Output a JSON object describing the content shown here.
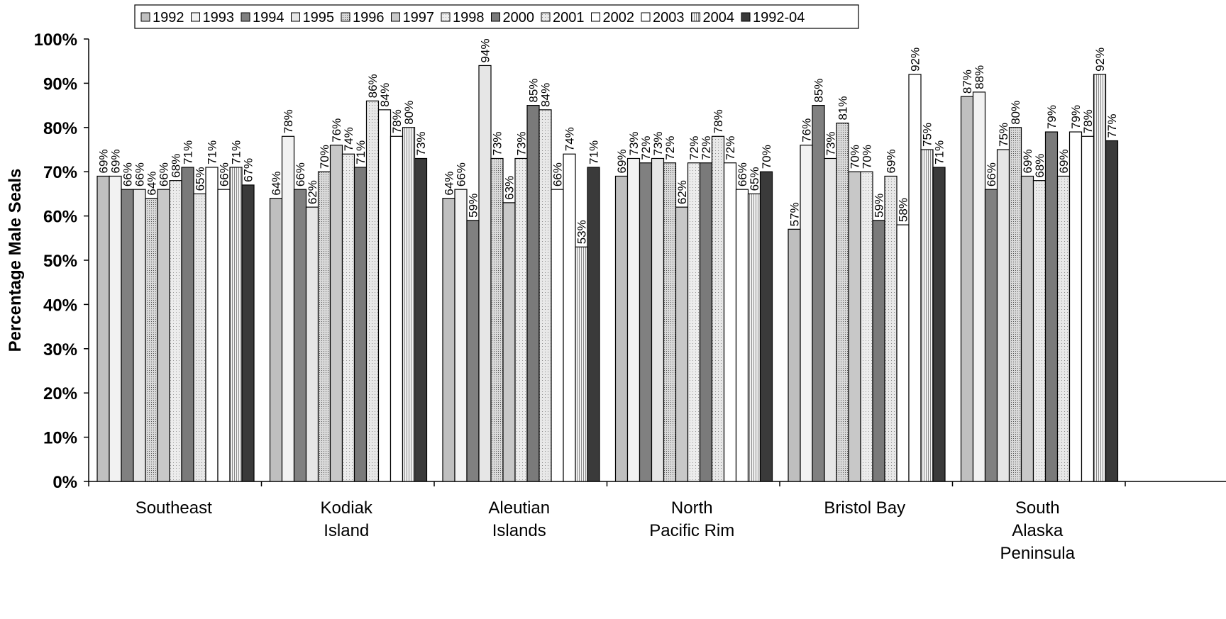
{
  "chart_data": {
    "type": "bar",
    "ylabel": "Percentage Male Seals",
    "xlabel": "",
    "ylim": [
      0,
      100
    ],
    "yticks": [
      "0%",
      "10%",
      "20%",
      "30%",
      "40%",
      "50%",
      "60%",
      "70%",
      "80%",
      "90%",
      "100%"
    ],
    "grid": false,
    "legend_position": "top",
    "categories": [
      [
        "Southeast"
      ],
      [
        "Kodiak",
        "Island"
      ],
      [
        "Aleutian",
        "Islands"
      ],
      [
        "North",
        "Pacific Rim"
      ],
      [
        "Bristol Bay"
      ],
      [
        "South",
        "Alaska",
        "Peninsula"
      ]
    ],
    "series": [
      {
        "name": "1992",
        "color": "#bfbfbf",
        "values": [
          69,
          64,
          64,
          69,
          57,
          87
        ]
      },
      {
        "name": "1993",
        "color": "#f2f2f2",
        "values": [
          69,
          78,
          66,
          73,
          76,
          88
        ]
      },
      {
        "name": "1994",
        "color": "#808080",
        "values": [
          66,
          66,
          59,
          72,
          85,
          66
        ]
      },
      {
        "name": "1995",
        "color": "#e6e6e6",
        "values": [
          66,
          62,
          94,
          73,
          73,
          75
        ]
      },
      {
        "name": "1996",
        "color": "#b3b3b3",
        "values": [
          64,
          70,
          73,
          72,
          81,
          80
        ]
      },
      {
        "name": "1997",
        "color": "#c8c8c8",
        "values": [
          66,
          76,
          63,
          62,
          70,
          69
        ]
      },
      {
        "name": "1998",
        "color": "#dcdcdc",
        "values": [
          68,
          74,
          73,
          72,
          70,
          68
        ]
      },
      {
        "name": "2000",
        "color": "#7a7a7a",
        "values": [
          71,
          71,
          85,
          72,
          59,
          79
        ]
      },
      {
        "name": "2001",
        "color": "#d0d0d0",
        "values": [
          65,
          86,
          84,
          78,
          69,
          69
        ]
      },
      {
        "name": "2002",
        "color": "#ffffff",
        "values": [
          71,
          84,
          66,
          72,
          58,
          79
        ]
      },
      {
        "name": "2003",
        "color": "#ffffff",
        "values": [
          66,
          78,
          74,
          66,
          92,
          78
        ]
      },
      {
        "name": "2004",
        "color": "#e0e0e0",
        "values": [
          71,
          80,
          53,
          65,
          75,
          92
        ]
      },
      {
        "name": "1992-04",
        "color": "#3a3a3a",
        "values": [
          67,
          73,
          71,
          70,
          71,
          77
        ]
      }
    ],
    "data_label_suffix": "%"
  }
}
